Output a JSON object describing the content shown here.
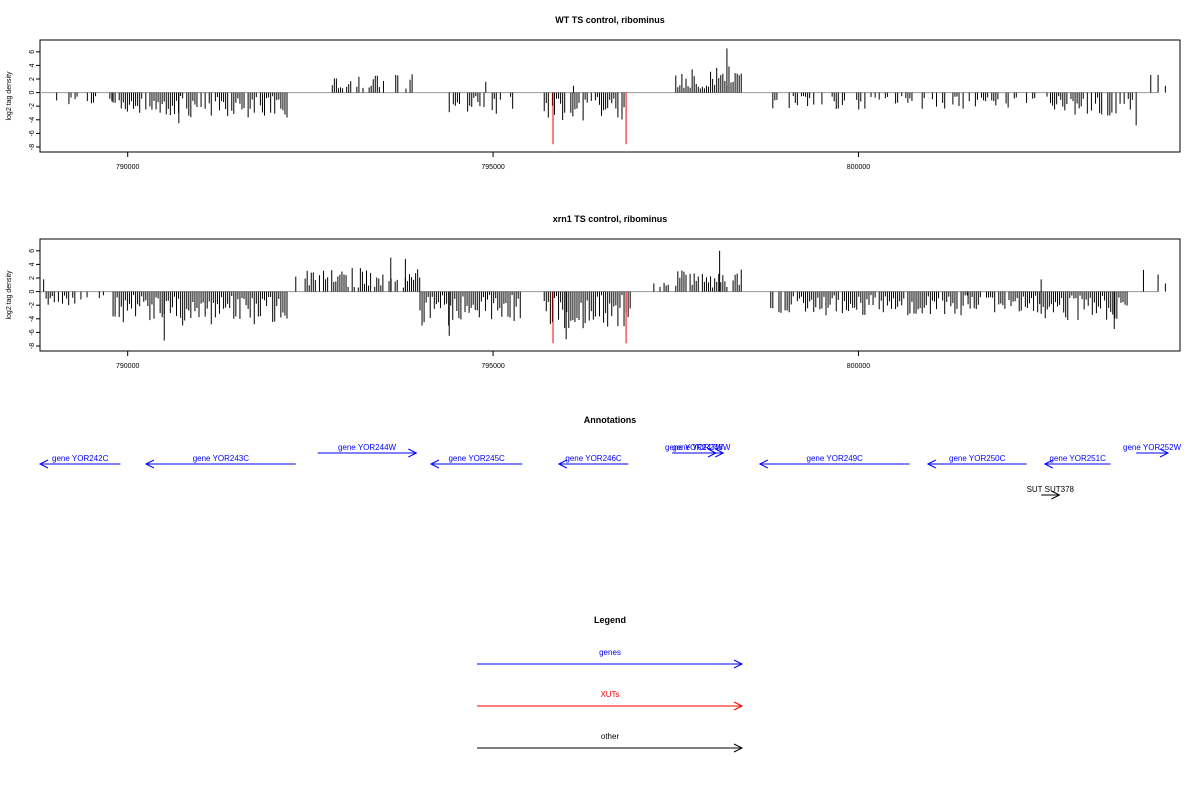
{
  "colors": {
    "gene": "#0000ff",
    "xut": "#ff0000",
    "other": "#000000",
    "bar": "#000000",
    "baseline": "#999999"
  },
  "chart_data": [
    {
      "type": "bar",
      "title": "WT TS control, ribominus",
      "ylabel": "log2 tag density",
      "xlim": [
        788800,
        804400
      ],
      "ylim": [
        -8,
        7
      ],
      "y_ticks": [
        6,
        4,
        2,
        0,
        -2,
        -4,
        -6,
        -8
      ],
      "x_ticks": [
        790000,
        795000,
        800000
      ],
      "x_tick_labels": [
        "790000",
        "795000",
        "800000"
      ],
      "regions": [
        {
          "start": 789000,
          "end": 789800,
          "sign": -1,
          "amp": 1.2,
          "density": 0.35
        },
        {
          "start": 789800,
          "end": 792200,
          "sign": -1,
          "amp": 3.2,
          "density": 0.85
        },
        {
          "start": 792800,
          "end": 793900,
          "sign": 1,
          "amp": 2.3,
          "density": 0.6
        },
        {
          "start": 794400,
          "end": 795300,
          "sign": -1,
          "amp": 2.8,
          "density": 0.6
        },
        {
          "start": 795700,
          "end": 796800,
          "sign": -1,
          "amp": 3.6,
          "density": 0.9
        },
        {
          "start": 797500,
          "end": 798400,
          "sign": 1,
          "amp": 3.4,
          "density": 1.0
        },
        {
          "start": 798800,
          "end": 802600,
          "sign": -1,
          "amp": 2.0,
          "density": 0.45
        },
        {
          "start": 802600,
          "end": 803800,
          "sign": -1,
          "amp": 3.0,
          "density": 0.7
        }
      ],
      "highlights": [
        {
          "x": 794900,
          "y": 1.6
        },
        {
          "x": 796100,
          "y": 1.0
        },
        {
          "x": 798200,
          "y": 6.5
        },
        {
          "x": 803800,
          "y": -4.8
        },
        {
          "x": 804000,
          "y": 2.6
        },
        {
          "x": 804100,
          "y": 2.6
        },
        {
          "x": 804200,
          "y": 1.0
        },
        {
          "x": 790700,
          "y": -4.5
        }
      ],
      "red_marks": [
        {
          "x": 795820,
          "y": -7.6
        },
        {
          "x": 796820,
          "y": -7.6
        }
      ]
    },
    {
      "type": "bar",
      "title": "xrn1 TS control, ribominus",
      "ylabel": "log2 tag density",
      "xlim": [
        788800,
        804400
      ],
      "ylim": [
        -8,
        7
      ],
      "y_ticks": [
        6,
        4,
        2,
        0,
        -2,
        -4,
        -6,
        -8
      ],
      "x_ticks": [
        790000,
        795000,
        800000
      ],
      "x_tick_labels": [
        "790000",
        "795000",
        "800000"
      ],
      "regions": [
        {
          "start": 788800,
          "end": 789800,
          "sign": -1,
          "amp": 1.6,
          "density": 0.5
        },
        {
          "start": 789800,
          "end": 792200,
          "sign": -1,
          "amp": 4.5,
          "density": 1.0
        },
        {
          "start": 792400,
          "end": 794000,
          "sign": 1,
          "amp": 3.0,
          "density": 0.9
        },
        {
          "start": 794000,
          "end": 795400,
          "sign": -1,
          "amp": 4.5,
          "density": 1.0
        },
        {
          "start": 795700,
          "end": 796900,
          "sign": -1,
          "amp": 5.0,
          "density": 1.0
        },
        {
          "start": 797200,
          "end": 797500,
          "sign": 1,
          "amp": 1.0,
          "density": 0.4
        },
        {
          "start": 797500,
          "end": 798400,
          "sign": 1,
          "amp": 2.8,
          "density": 0.9
        },
        {
          "start": 798800,
          "end": 801500,
          "sign": -1,
          "amp": 3.0,
          "density": 0.9
        },
        {
          "start": 801500,
          "end": 802500,
          "sign": -1,
          "amp": 2.8,
          "density": 0.9
        },
        {
          "start": 802500,
          "end": 803700,
          "sign": -1,
          "amp": 4.0,
          "density": 1.0
        }
      ],
      "highlights": [
        {
          "x": 788850,
          "y": 1.8
        },
        {
          "x": 792300,
          "y": 2.2
        },
        {
          "x": 793600,
          "y": 5.0
        },
        {
          "x": 793800,
          "y": 4.8
        },
        {
          "x": 798100,
          "y": 6.0
        },
        {
          "x": 790500,
          "y": -7.2
        },
        {
          "x": 794400,
          "y": -6.5
        },
        {
          "x": 796000,
          "y": -7.0
        },
        {
          "x": 802500,
          "y": 1.8
        },
        {
          "x": 803500,
          "y": -5.5
        },
        {
          "x": 803900,
          "y": 3.2
        },
        {
          "x": 804100,
          "y": 2.5
        },
        {
          "x": 804200,
          "y": 1.2
        }
      ],
      "red_marks": [
        {
          "x": 795820,
          "y": -7.6
        },
        {
          "x": 796820,
          "y": -7.6
        }
      ]
    }
  ],
  "annotations": {
    "title": "Annotations",
    "features": [
      {
        "label": "gene YOR242C",
        "start": 788800,
        "end": 789900,
        "strand": "-",
        "kind": "gene",
        "row": 0
      },
      {
        "label": "gene YOR243C",
        "start": 790250,
        "end": 792300,
        "strand": "-",
        "kind": "gene",
        "row": 0
      },
      {
        "label": "gene YOR244W",
        "start": 792600,
        "end": 793950,
        "strand": "+",
        "kind": "gene",
        "row": 1
      },
      {
        "label": "gene YOR245C",
        "start": 794150,
        "end": 795400,
        "strand": "-",
        "kind": "gene",
        "row": 0
      },
      {
        "label": "gene YOR246C",
        "start": 795900,
        "end": 796850,
        "strand": "-",
        "kind": "gene",
        "row": 0
      },
      {
        "label": "gene YOR247W",
        "start": 797450,
        "end": 798050,
        "strand": "+",
        "kind": "gene",
        "row": 1
      },
      {
        "label": "gene YOR248W",
        "start": 797550,
        "end": 798150,
        "strand": "+",
        "kind": "gene",
        "row": 1
      },
      {
        "label": "gene YOR249C",
        "start": 798650,
        "end": 800700,
        "strand": "-",
        "kind": "gene",
        "row": 0
      },
      {
        "label": "gene YOR250C",
        "start": 800950,
        "end": 802300,
        "strand": "-",
        "kind": "gene",
        "row": 0
      },
      {
        "label": "gene YOR251C",
        "start": 802550,
        "end": 803450,
        "strand": "-",
        "kind": "gene",
        "row": 0
      },
      {
        "label": "gene YOR252W",
        "start": 803800,
        "end": 804550,
        "strand": "+",
        "kind": "gene",
        "row": 1
      },
      {
        "label": "SUT SUT378",
        "start": 802500,
        "end": 802750,
        "strand": "+",
        "kind": "other",
        "row": 2
      }
    ]
  },
  "legend": {
    "title": "Legend",
    "items": [
      {
        "label": "genes",
        "kind": "gene"
      },
      {
        "label": "XUTs",
        "kind": "xut"
      },
      {
        "label": "other",
        "kind": "other"
      }
    ]
  }
}
